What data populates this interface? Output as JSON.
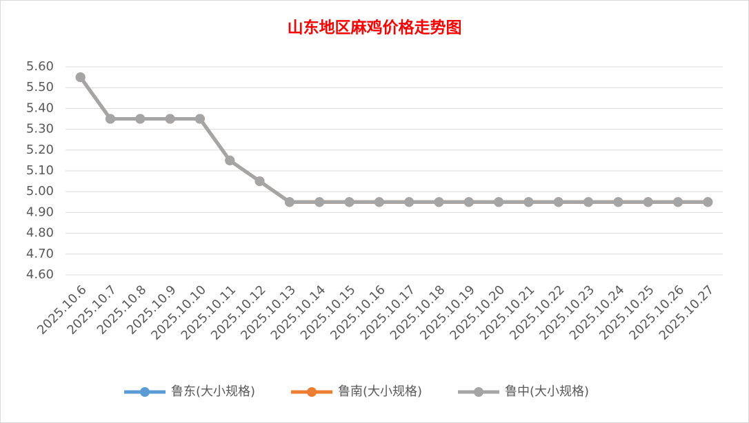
{
  "chart_data": {
    "type": "line",
    "title": "山东地区麻鸡价格走势图",
    "categories": [
      "2025.10.6",
      "2025.10.7",
      "2025.10.8",
      "2025.10.9",
      "2025.10.10",
      "2025.10.11",
      "2025.10.12",
      "2025.10.13",
      "2025.10.14",
      "2025.10.15",
      "2025.10.16",
      "2025.10.17",
      "2025.10.18",
      "2025.10.19",
      "2025.10.20",
      "2025.10.21",
      "2025.10.22",
      "2025.10.23",
      "2025.10.24",
      "2025.10.25",
      "2025.10.26",
      "2025.10.27"
    ],
    "series": [
      {
        "name": "鲁东(大小规格)",
        "color": "#5b9bd5",
        "values": [
          5.55,
          5.35,
          5.35,
          5.35,
          5.35,
          5.15,
          5.05,
          4.95,
          4.95,
          4.95,
          4.95,
          4.95,
          4.95,
          4.95,
          4.95,
          4.95,
          4.95,
          4.95,
          4.95,
          4.95,
          4.95,
          4.95
        ]
      },
      {
        "name": "鲁南(大小规格)",
        "color": "#ed7d31",
        "values": [
          5.55,
          5.35,
          5.35,
          5.35,
          5.35,
          5.15,
          5.05,
          4.95,
          4.95,
          4.95,
          4.95,
          4.95,
          4.95,
          4.95,
          4.95,
          4.95,
          4.95,
          4.95,
          4.95,
          4.95,
          4.95,
          4.95
        ]
      },
      {
        "name": "鲁中(大小规格)",
        "color": "#a5a5a5",
        "values": [
          5.55,
          5.35,
          5.35,
          5.35,
          5.35,
          5.15,
          5.05,
          4.95,
          4.95,
          4.95,
          4.95,
          4.95,
          4.95,
          4.95,
          4.95,
          4.95,
          4.95,
          4.95,
          4.95,
          4.95,
          4.95,
          4.95
        ]
      }
    ],
    "ylim": [
      4.6,
      5.6
    ],
    "yticks": [
      {
        "value": 4.6,
        "label": "4.60"
      },
      {
        "value": 4.7,
        "label": "4.70"
      },
      {
        "value": 4.8,
        "label": "4.80"
      },
      {
        "value": 4.9,
        "label": "4.90"
      },
      {
        "value": 5.0,
        "label": "5.00"
      },
      {
        "value": 5.1,
        "label": "5.10"
      },
      {
        "value": 5.2,
        "label": "5.20"
      },
      {
        "value": 5.3,
        "label": "5.30"
      },
      {
        "value": 5.4,
        "label": "5.40"
      },
      {
        "value": 5.5,
        "label": "5.50"
      },
      {
        "value": 5.6,
        "label": "5.60"
      }
    ],
    "grid": true,
    "legend": "bottom"
  }
}
